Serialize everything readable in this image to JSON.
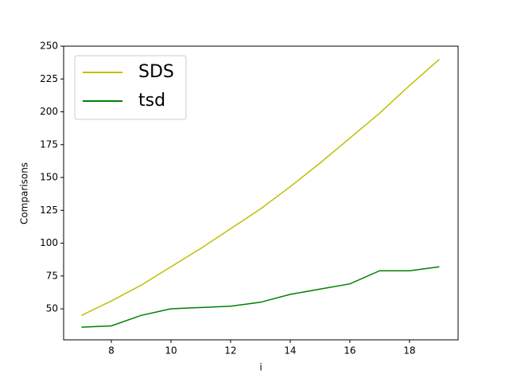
{
  "chart_data": {
    "type": "line",
    "x": [
      7,
      8,
      9,
      10,
      11,
      12,
      13,
      14,
      15,
      16,
      17,
      18,
      19
    ],
    "series": [
      {
        "name": "SDS",
        "color": "#bfbf00",
        "values": [
          45,
          56,
          68,
          82,
          96,
          111,
          126,
          143,
          161,
          180,
          199,
          220,
          240
        ]
      },
      {
        "name": "tsd",
        "color": "#008000",
        "values": [
          36,
          37,
          45,
          50,
          51,
          52,
          55,
          61,
          65,
          69,
          79,
          79,
          82
        ]
      }
    ],
    "xlabel": "i",
    "ylabel": "Comparisons",
    "xlim": [
      6.4,
      19.63
    ],
    "ylim": [
      26.4,
      250
    ],
    "xticks": [
      8,
      10,
      12,
      14,
      16,
      18
    ],
    "yticks": [
      50,
      75,
      100,
      125,
      150,
      175,
      200,
      225,
      250
    ],
    "legend": "upper-left"
  }
}
